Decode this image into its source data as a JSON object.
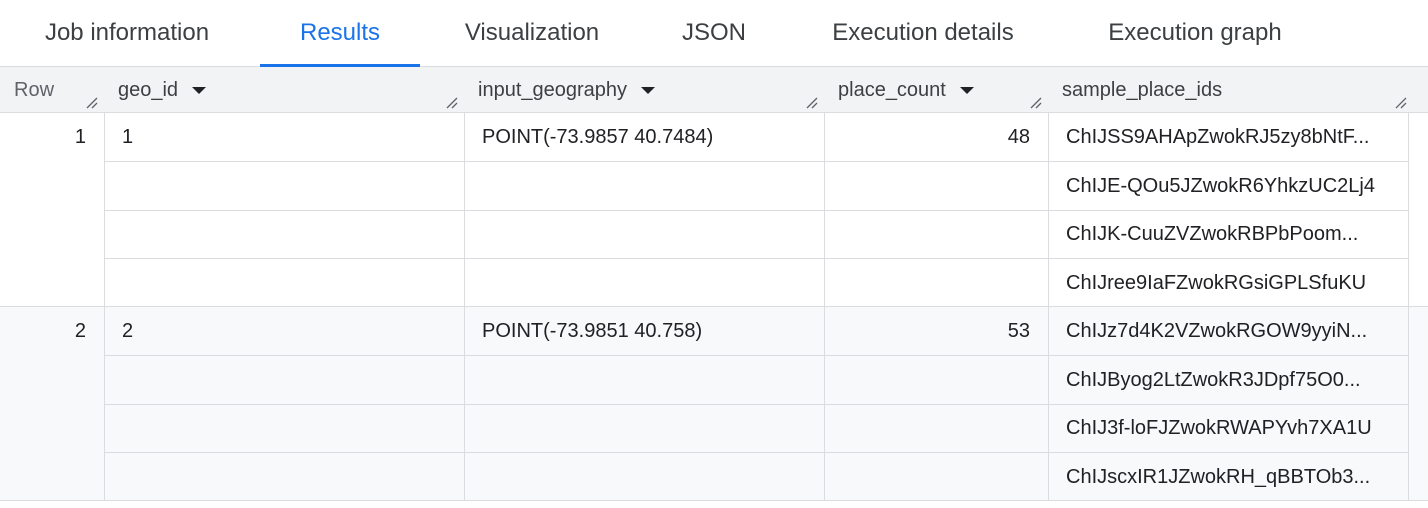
{
  "tabs": [
    "Job information",
    "Results",
    "Visualization",
    "JSON",
    "Execution details",
    "Execution graph"
  ],
  "active_tab": "Results",
  "columns": {
    "row": "Row",
    "geo_id": "geo_id",
    "input_geography": "input_geography",
    "place_count": "place_count",
    "sample_place_ids": "sample_place_ids"
  },
  "rows": [
    {
      "row": "1",
      "geo_id": "1",
      "input_geography": "POINT(-73.9857 40.7484)",
      "place_count": "48",
      "sample_place_ids": [
        "ChIJSS9AHApZwokRJ5zy8bNtF...",
        "ChIJE-QOu5JZwokR6YhkzUC2Lj4",
        "ChIJK-CuuZVZwokRBPbPoom...",
        "ChIJree9IaFZwokRGsiGPLSfuKU"
      ]
    },
    {
      "row": "2",
      "geo_id": "2",
      "input_geography": "POINT(-73.9851 40.758)",
      "place_count": "53",
      "sample_place_ids": [
        "ChIJz7d4K2VZwokRGOW9yyiN...",
        "ChIJByog2LtZwokR3JDpf75O0...",
        "ChIJ3f-loFJZwokRWAPYvh7XA1U",
        "ChIJscxIR1JZwokRH_qBBTOb3..."
      ]
    }
  ],
  "colors": {
    "accent": "#1a73e8",
    "header_bg": "#f1f3f4",
    "alt_row_bg": "#f8f9fa"
  }
}
